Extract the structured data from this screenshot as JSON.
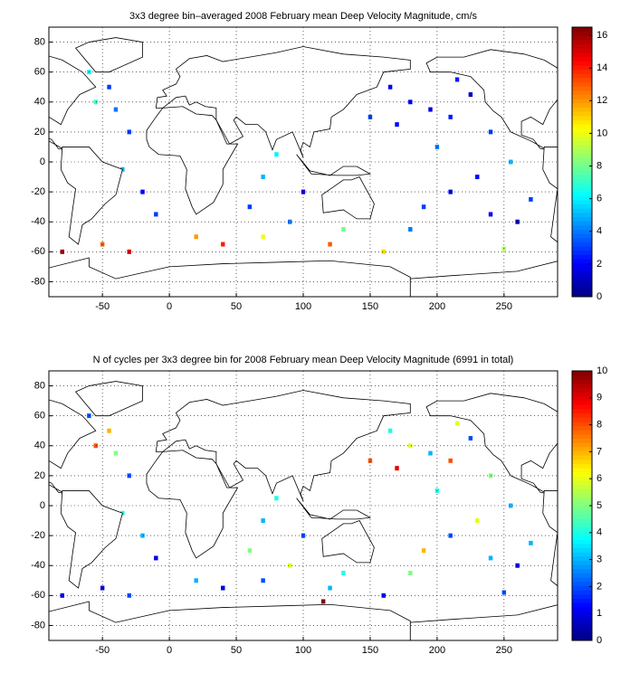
{
  "chart_data": [
    {
      "type": "heatmap",
      "title": "3x3 degree bin–averaged 2008 February mean Deep Velocity Magnitude, cm/s",
      "x": [
        180,
        195,
        210,
        225,
        240,
        200,
        170,
        255,
        230,
        210,
        190,
        240,
        260,
        180,
        150,
        165,
        215,
        270,
        -40,
        -30,
        -55,
        -20,
        -10,
        -35,
        -60,
        -45,
        70,
        60,
        90,
        100,
        80,
        -50,
        -30,
        20,
        40,
        70,
        120,
        160,
        250,
        -80,
        130
      ],
      "y": [
        40,
        35,
        30,
        45,
        20,
        10,
        25,
        0,
        -10,
        -20,
        -30,
        -35,
        -40,
        -45,
        30,
        50,
        55,
        -25,
        35,
        20,
        40,
        -20,
        -35,
        -5,
        60,
        50,
        -10,
        -30,
        -40,
        -20,
        5,
        -55,
        -60,
        -50,
        -55,
        -50,
        -55,
        -60,
        -58,
        -60,
        -45
      ],
      "values": [
        2,
        1.5,
        2.5,
        1,
        3,
        4,
        2,
        5,
        2,
        1.5,
        3,
        2,
        1,
        4,
        3,
        2,
        2.5,
        3,
        4,
        3,
        7,
        2,
        3,
        5,
        6,
        3,
        5,
        3,
        4,
        2,
        6,
        13,
        15,
        12,
        14,
        10,
        13,
        11,
        9,
        16,
        8
      ],
      "xlim": [
        -90,
        290
      ],
      "ylim": [
        -90,
        90
      ],
      "xticks": [
        -50,
        0,
        50,
        100,
        150,
        200,
        250
      ],
      "yticks": [
        -80,
        -60,
        -40,
        -20,
        0,
        20,
        40,
        60,
        80
      ],
      "clim": [
        0,
        16.5
      ],
      "cticks": [
        0,
        2,
        4,
        6,
        8,
        10,
        12,
        14,
        16
      ],
      "colormap": "jet",
      "grid": true
    },
    {
      "type": "heatmap",
      "title": "N of cycles per 3x3 degree bin for 2008 February mean Deep Velocity Magnitude (6991 in total)",
      "x": [
        180,
        195,
        210,
        225,
        240,
        200,
        170,
        255,
        230,
        210,
        190,
        240,
        260,
        180,
        150,
        165,
        215,
        270,
        -40,
        -30,
        -55,
        -20,
        -10,
        -35,
        -60,
        -45,
        70,
        60,
        90,
        100,
        80,
        -50,
        -30,
        20,
        40,
        70,
        120,
        160,
        250,
        -80,
        130,
        115
      ],
      "y": [
        40,
        35,
        30,
        45,
        20,
        10,
        25,
        0,
        -10,
        -20,
        -30,
        -35,
        -40,
        -45,
        30,
        50,
        55,
        -25,
        35,
        20,
        40,
        -20,
        -35,
        -5,
        60,
        50,
        -10,
        -30,
        -40,
        -20,
        5,
        -55,
        -60,
        -50,
        -55,
        -50,
        -55,
        -60,
        -58,
        -60,
        -45,
        -64
      ],
      "values": [
        6,
        3,
        8,
        2,
        5,
        4,
        9,
        3,
        6,
        2,
        7,
        3,
        1,
        5,
        8,
        4,
        6,
        3,
        5,
        2,
        8,
        3,
        1,
        4,
        2,
        7,
        3,
        5,
        6,
        2,
        4,
        1,
        2,
        3,
        1,
        2,
        3,
        1,
        2,
        1,
        4,
        10
      ],
      "xlim": [
        -90,
        290
      ],
      "ylim": [
        -90,
        90
      ],
      "xticks": [
        -50,
        0,
        50,
        100,
        150,
        200,
        250
      ],
      "yticks": [
        -80,
        -60,
        -40,
        -20,
        0,
        20,
        40,
        60,
        80
      ],
      "clim": [
        0,
        10
      ],
      "cticks": [
        0,
        1,
        2,
        3,
        4,
        5,
        6,
        7,
        8,
        9,
        10
      ],
      "colormap": "jet",
      "grid": true
    }
  ]
}
